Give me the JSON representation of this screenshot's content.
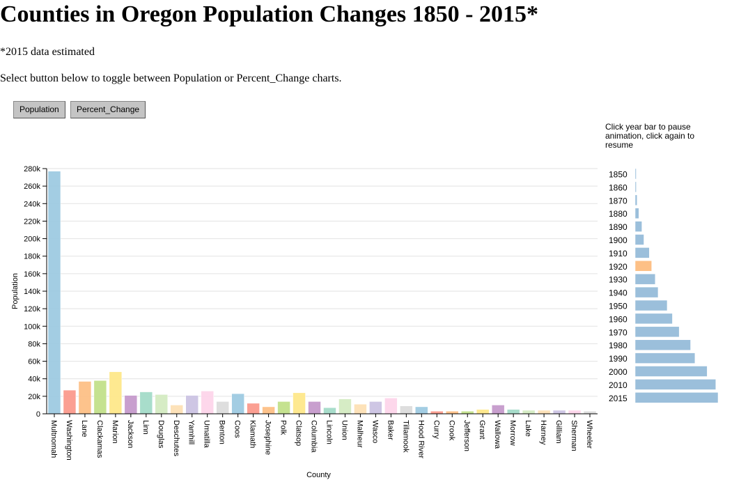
{
  "title": "Counties in Oregon Population Changes 1850 - 2015*",
  "note": "*2015 data estimated",
  "instructions": "Select button below to toggle between Population or Percent_Change charts.",
  "buttons": {
    "population": "Population",
    "percent_change": "Percent_Change"
  },
  "year_hint": "Click year bar to pause animation, click again to resume",
  "chart_data": [
    {
      "type": "bar",
      "xlabel": "County",
      "ylabel": "Population",
      "ylim": [
        0,
        280000
      ],
      "yticks": [
        0,
        20000,
        40000,
        60000,
        80000,
        100000,
        120000,
        140000,
        160000,
        180000,
        200000,
        220000,
        240000,
        260000,
        280000
      ],
      "ytick_labels": [
        "0",
        "20k",
        "40k",
        "60k",
        "80k",
        "100k",
        "120k",
        "140k",
        "160k",
        "180k",
        "200k",
        "220k",
        "240k",
        "260k",
        "280k"
      ],
      "grid": true,
      "categories": [
        "Multnomah",
        "Washington",
        "Lane",
        "Clackamas",
        "Marion",
        "Jackson",
        "Linn",
        "Douglas",
        "Deschutes",
        "Yamhill",
        "Umatilla",
        "Benton",
        "Coos",
        "Klamath",
        "Josephine",
        "Polk",
        "Clatsop",
        "Columbia",
        "Lincoln",
        "Union",
        "Malheur",
        "Wasco",
        "Baker",
        "Tillamook",
        "Hood River",
        "Curry",
        "Crook",
        "Jefferson",
        "Grant",
        "Wallowa",
        "Morrow",
        "Lake",
        "Harney",
        "Gilliam",
        "Sherman",
        "Wheeler"
      ],
      "values": [
        277000,
        27000,
        37000,
        38000,
        48000,
        21000,
        25000,
        22000,
        10000,
        21000,
        26000,
        14000,
        23000,
        12000,
        8000,
        14000,
        24000,
        14000,
        7000,
        17000,
        11000,
        14000,
        18000,
        9000,
        8000,
        3000,
        3000,
        3000,
        5000,
        10000,
        5000,
        4000,
        4000,
        4000,
        4000,
        3000
      ],
      "colors": [
        "#9ecae1",
        "#fb9a8c",
        "#fdc086",
        "#c2e08a",
        "#fee88a",
        "#c59acb",
        "#a3dbc8",
        "#d4ebc2",
        "#fde0b5",
        "#cbc3e3",
        "#fdd5ea",
        "#dcdcdc",
        "#9ecae1",
        "#fb9a8c",
        "#fdc086",
        "#c2e08a",
        "#fee88a",
        "#c59acb",
        "#a3dbc8",
        "#d4ebc2",
        "#fde0b5",
        "#cbc3e3",
        "#fdd5ea",
        "#dcdcdc",
        "#9ecae1",
        "#fb9a8c",
        "#fdc086",
        "#c2e08a",
        "#fee88a",
        "#c59acb",
        "#a3dbc8",
        "#d4ebc2",
        "#fde0b5",
        "#cbc3e3",
        "#fdd5ea",
        "#dcdcdc"
      ]
    },
    {
      "type": "bar",
      "orientation": "horizontal",
      "categories": [
        "1850",
        "1860",
        "1870",
        "1880",
        "1890",
        "1900",
        "1910",
        "1920",
        "1930",
        "1940",
        "1950",
        "1960",
        "1970",
        "1980",
        "1990",
        "2000",
        "2010",
        "2015"
      ],
      "values": [
        12000,
        52000,
        91000,
        175000,
        318000,
        414000,
        673000,
        783000,
        954000,
        1090000,
        1521000,
        1769000,
        2091000,
        2633000,
        2842000,
        3421000,
        3831000,
        3939000
      ],
      "selected": "1920",
      "bar_color": "#9bbfdb",
      "selected_color": "#fdc086"
    }
  ]
}
